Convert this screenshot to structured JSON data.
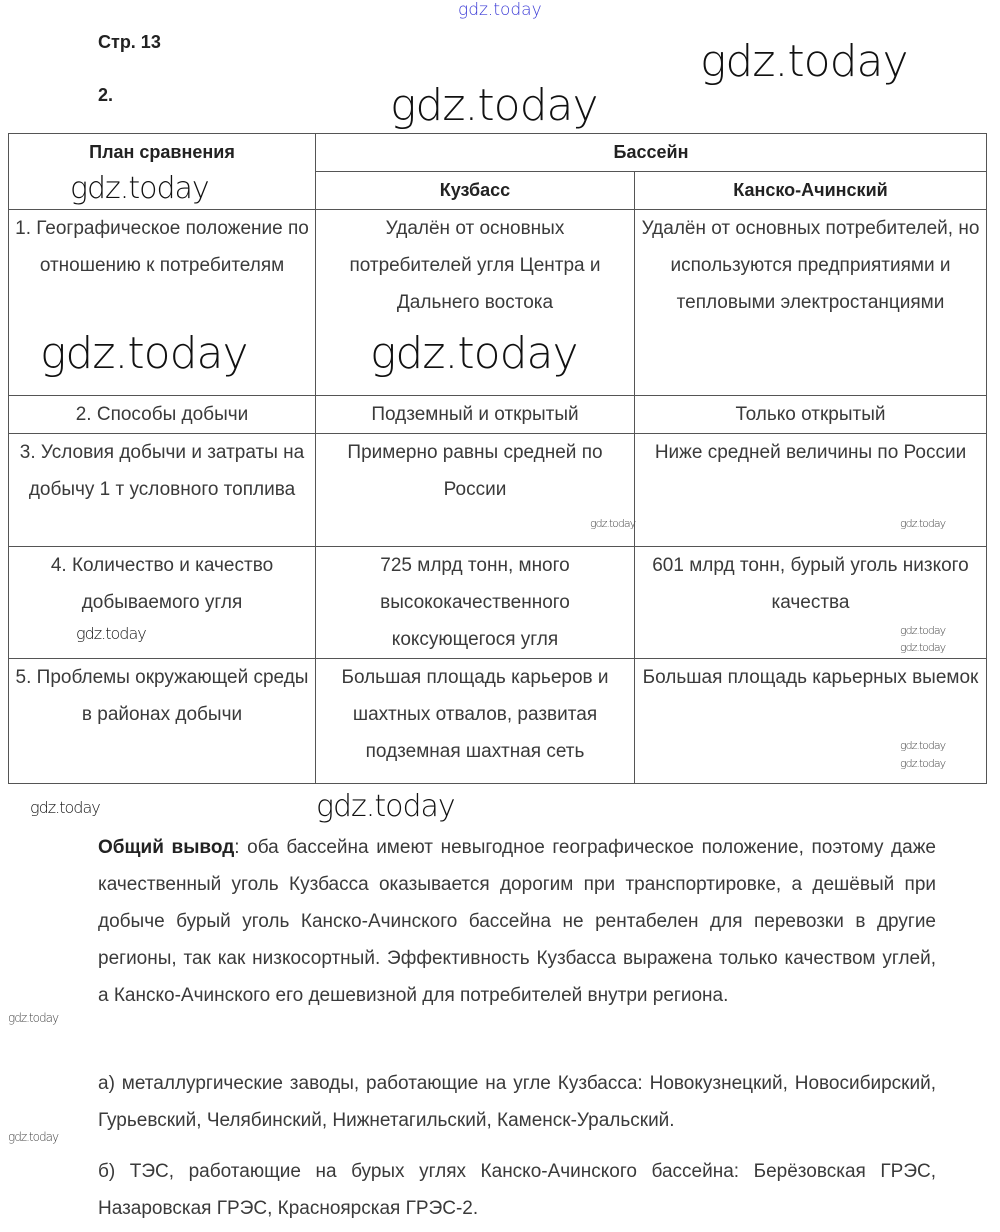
{
  "page_ref": "Стр. 13",
  "task_number": "2.",
  "table": {
    "header_plan": "План сравнения",
    "header_basin": "Бассейн",
    "columns": [
      "Кузбасс",
      "Канско-Ачинский"
    ],
    "rows": [
      {
        "plan": "1. Географическое положение по отношению к потребителям",
        "kuzbass": "Удалён от основных потребителей угля Центра и Дальнего востока",
        "kansk": "Удалён от основных потребителей, но используются предприятиями и тепловыми электростанциями"
      },
      {
        "plan": "2. Способы добычи",
        "kuzbass": "Подземный и открытый",
        "kansk": "Только открытый"
      },
      {
        "plan": "3. Условия добычи и затраты на добычу 1 т условного топлива",
        "kuzbass": "Примерно равны средней по России",
        "kansk": "Ниже средней величины по России"
      },
      {
        "plan": "4. Количество и качество добываемого угля",
        "kuzbass": "725 млрд тонн, много высококачественного коксующегося угля",
        "kansk": "601 млрд тонн, бурый уголь низкого качества"
      },
      {
        "plan": "5. Проблемы окружающей среды в районах добычи",
        "kuzbass": "Большая площадь карьеров и шахтных отвалов, развитая подземная шахтная сеть",
        "kansk": "Большая площадь карьерных выемок"
      }
    ]
  },
  "conclusion": {
    "label": "Общий вывод",
    "text": ": оба бассейна имеют невыгодное географическое положение, поэтому даже качественный уголь Кузбасса оказывается дорогим при транспортировке, а дешёвый при добыче бурый уголь Канско-Ачинского бассейна не рентабелен для перевозки в другие регионы, так как низкосортный. Эффективность Кузбасса выражена только качеством углей, а Канско-Ачинского его дешевизной для потребителей внутри региона."
  },
  "item_a": "а) металлургические заводы, работающие на угле Кузбасса: Новокузнецкий, Новосибирский, Гурьевский, Челябинский, Нижнетагильский, Каменск-Уральский.",
  "item_b": "б) ТЭС, работающие на бурых углях Канско-Ачинского бассейна: Берёзовская ГРЭС, Назаровская ГРЭС, Красноярская ГРЭС-2.",
  "watermark": "gdz.today",
  "colors": {
    "watermark_top": "#3b3bd6",
    "text": "#3a3a3a"
  }
}
